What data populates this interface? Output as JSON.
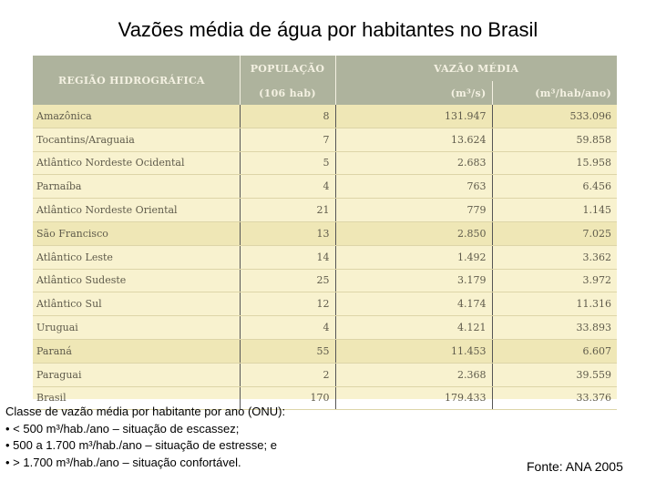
{
  "title": "Vazões média de água por habitantes no Brasil",
  "table": {
    "headers": {
      "region": "REGIÃO HIDROGRÁFICA",
      "population": "POPULAÇÃO",
      "flow": "VAZÃO MÉDIA",
      "population_unit": "(106 hab)",
      "flow_unit_1": "(m³/s)",
      "flow_unit_2": "(m³/hab/ano)"
    },
    "rows": [
      {
        "region": "Amazônica",
        "population": "8",
        "flow": "131.947",
        "per_capita": "533.096"
      },
      {
        "region": "Tocantins/Araguaia",
        "population": "7",
        "flow": "13.624",
        "per_capita": "59.858"
      },
      {
        "region": "Atlântico Nordeste Ocidental",
        "population": "5",
        "flow": "2.683",
        "per_capita": "15.958"
      },
      {
        "region": "Parnaíba",
        "population": "4",
        "flow": "763",
        "per_capita": "6.456"
      },
      {
        "region": "Atlântico Nordeste Oriental",
        "population": "21",
        "flow": "779",
        "per_capita": "1.145"
      },
      {
        "region": "São Francisco",
        "population": "13",
        "flow": "2.850",
        "per_capita": "7.025"
      },
      {
        "region": "Atlântico Leste",
        "population": "14",
        "flow": "1.492",
        "per_capita": "3.362"
      },
      {
        "region": "Atlântico Sudeste",
        "population": "25",
        "flow": "3.179",
        "per_capita": "3.972"
      },
      {
        "region": "Atlântico Sul",
        "population": "12",
        "flow": "4.174",
        "per_capita": "11.316"
      },
      {
        "region": "Uruguai",
        "population": "4",
        "flow": "4.121",
        "per_capita": "33.893"
      },
      {
        "region": "Paraná",
        "population": "55",
        "flow": "11.453",
        "per_capita": "6.607"
      },
      {
        "region": "Paraguai",
        "population": "2",
        "flow": "2.368",
        "per_capita": "39.559"
      },
      {
        "region": "Brasil",
        "population": "170",
        "flow": "179.433",
        "per_capita": "33.376"
      }
    ]
  },
  "notes": {
    "line1": "Classe de vazão média por habitante por ano (ONU):",
    "line2": "• < 500 m³/hab./ano – situação de escassez;",
    "line3": "• 500 a 1.700 m³/hab./ano – situação de estresse; e",
    "line4": "• > 1.700 m³/hab./ano – situação confortável."
  },
  "source": "Fonte: ANA 2005"
}
